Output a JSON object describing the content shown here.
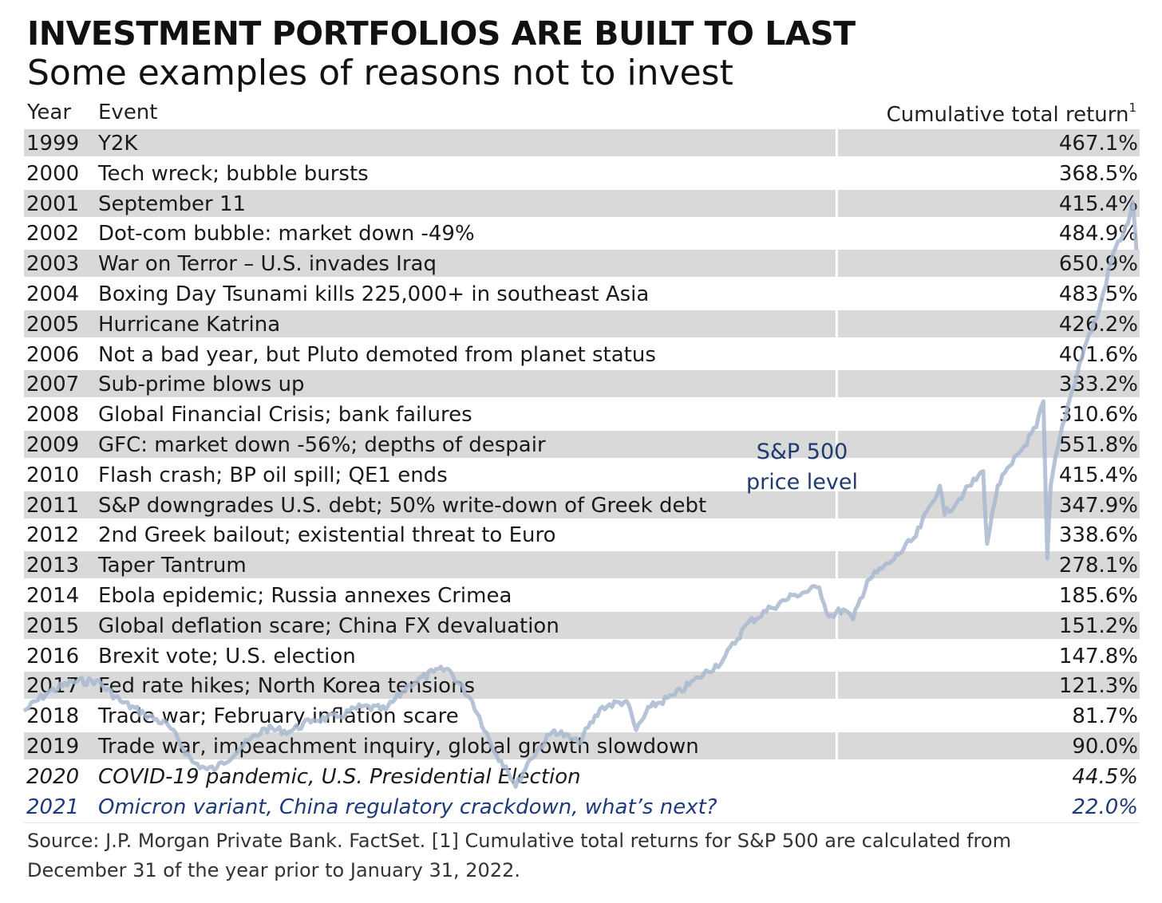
{
  "title": "INVESTMENT PORTFOLIOS ARE BUILT TO LAST",
  "subtitle": "Some examples of reasons not to invest",
  "header": {
    "year": "Year",
    "event": "Event",
    "return": "Cumulative total return",
    "return_note": "1"
  },
  "chart_data": [
    {
      "type": "table",
      "columns": [
        "Year",
        "Event",
        "Cumulative total return"
      ],
      "rows": [
        [
          "1999",
          "Y2K",
          "467.1%"
        ],
        [
          "2000",
          "Tech wreck; bubble bursts",
          "368.5%"
        ],
        [
          "2001",
          "September 11",
          "415.4%"
        ],
        [
          "2002",
          "Dot-com bubble: market down -49%",
          "484.9%"
        ],
        [
          "2003",
          "War on Terror – U.S. invades Iraq",
          "650.9%"
        ],
        [
          "2004",
          "Boxing Day Tsunami kills 225,000+ in southeast Asia",
          "483.5%"
        ],
        [
          "2005",
          "Hurricane Katrina",
          "426.2%"
        ],
        [
          "2006",
          "Not a bad year, but Pluto demoted from planet status",
          "401.6%"
        ],
        [
          "2007",
          "Sub-prime blows up",
          "333.2%"
        ],
        [
          "2008",
          "Global Financial Crisis; bank failures",
          "310.6%"
        ],
        [
          "2009",
          "GFC: market down -56%; depths of despair",
          "551.8%"
        ],
        [
          "2010",
          "Flash crash; BP oil spill; QE1 ends",
          "415.4%"
        ],
        [
          "2011",
          "S&P downgrades U.S. debt; 50% write-down of Greek debt",
          "347.9%"
        ],
        [
          "2012",
          "2nd Greek bailout; existential threat to Euro",
          "338.6%"
        ],
        [
          "2013",
          "Taper Tantrum",
          "278.1%"
        ],
        [
          "2014",
          "Ebola epidemic; Russia annexes Crimea",
          "185.6%"
        ],
        [
          "2015",
          "Global deflation scare; China FX devaluation",
          "151.2%"
        ],
        [
          "2016",
          "Brexit vote; U.S. election",
          "147.8%"
        ],
        [
          "2017",
          "Fed rate hikes; North Korea tensions",
          "121.3%"
        ],
        [
          "2018",
          "Trade war; February inflation scare",
          "81.7%"
        ],
        [
          "2019",
          "Trade war, impeachment inquiry, global growth slowdown",
          "90.0%"
        ],
        [
          "2020",
          "COVID-19 pandemic, U.S. Presidential Election",
          "44.5%"
        ],
        [
          "2021",
          "Omicron variant, China regulatory crackdown, what’s next?",
          "22.0%"
        ]
      ]
    },
    {
      "type": "line",
      "series": [
        {
          "name": "S&P 500 price level",
          "color": "#a9b9cf",
          "x": [
            1999.0,
            1999.5,
            2000.0,
            2000.5,
            2001.0,
            2001.5,
            2002.0,
            2002.5,
            2002.8,
            2003.0,
            2003.5,
            2004.0,
            2004.5,
            2005.0,
            2005.5,
            2006.0,
            2006.5,
            2007.0,
            2007.5,
            2007.8,
            2008.3,
            2008.8,
            2009.0,
            2009.2,
            2009.5,
            2010.0,
            2010.5,
            2011.0,
            2011.5,
            2011.7,
            2012.0,
            2012.5,
            2013.0,
            2013.5,
            2014.0,
            2014.5,
            2015.0,
            2015.5,
            2015.7,
            2016.0,
            2016.2,
            2016.5,
            2017.0,
            2017.5,
            2018.0,
            2018.1,
            2018.5,
            2018.9,
            2018.98,
            2019.2,
            2019.5,
            2020.0,
            2020.15,
            2020.23,
            2020.3,
            2020.5,
            2020.7,
            2021.0,
            2021.3,
            2021.6,
            2021.9,
            2022.0,
            2022.08
          ],
          "values": [
            1250,
            1380,
            1450,
            1460,
            1320,
            1230,
            1150,
            900,
            850,
            860,
            1000,
            1130,
            1110,
            1190,
            1210,
            1280,
            1260,
            1430,
            1520,
            1540,
            1320,
            950,
            870,
            730,
            920,
            1120,
            1030,
            1280,
            1320,
            1120,
            1280,
            1360,
            1480,
            1600,
            1850,
            1960,
            2050,
            2100,
            1900,
            1950,
            1880,
            2150,
            2280,
            2450,
            2800,
            2600,
            2750,
            2900,
            2400,
            2800,
            2950,
            3200,
            3380,
            2300,
            2800,
            3150,
            3400,
            3750,
            4000,
            4400,
            4600,
            4750,
            4420
          ]
        }
      ],
      "label": "S&P 500 price level",
      "xlim": [
        1999,
        2022.08
      ],
      "ylim": [
        600,
        4850
      ],
      "grid": false
    }
  ],
  "source": "Source: J.P. Morgan Private Bank. FactSet. [1] Cumulative total returns for S&P 500 are calculated from December 31 of the year prior to January 31, 2022."
}
